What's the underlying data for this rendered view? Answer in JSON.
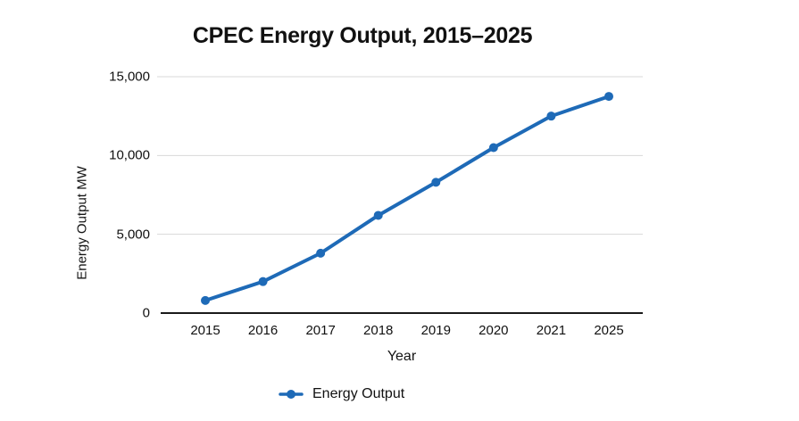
{
  "chart": {
    "title": "CPEC Energy Output, 2015–2025",
    "x_axis_title": "Year",
    "y_axis_title": "Energy Output MW",
    "legend": {
      "label": "Energy Output"
    }
  },
  "chart_data": {
    "type": "line",
    "title": "CPEC Energy Output, 2015–2025",
    "xlabel": "Year",
    "ylabel": "Energy Output MW",
    "categories": [
      "2015",
      "2016",
      "2017",
      "2018",
      "2019",
      "2020",
      "2021",
      "2025"
    ],
    "series": [
      {
        "name": "Energy Output",
        "values": [
          800,
          2000,
          3800,
          6200,
          8300,
          10500,
          12500,
          13750
        ]
      }
    ],
    "ylim": [
      0,
      15000
    ],
    "yticks": [
      0,
      5000,
      10000,
      15000
    ],
    "ytick_labels": [
      "0",
      "5,000",
      "10,000",
      "15,000"
    ],
    "grid": true,
    "legend_position": "bottom",
    "colors": {
      "line": "#1e6ab7",
      "marker": "#1e6ab7",
      "gridline": "#d8d8d8",
      "axis_line": "#1a1a1a",
      "text": "#111111",
      "background": "#ffffff"
    }
  }
}
